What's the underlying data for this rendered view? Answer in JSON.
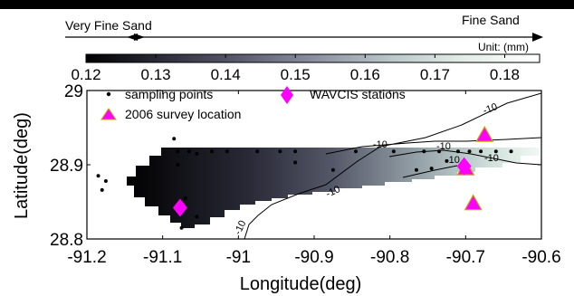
{
  "chart_data": {
    "type": "heatmap",
    "title": "",
    "xlabel": "Longitude(deg)",
    "ylabel": "Latitude(deg)",
    "xlim": [
      -91.2,
      -90.6
    ],
    "ylim": [
      28.8,
      29.0
    ],
    "xticks": [
      "-91.2",
      "-91.1",
      "-91",
      "-90.9",
      "-90.8",
      "-90.7",
      "-90.6"
    ],
    "yticks": [
      "28.8",
      "28.9",
      "29"
    ],
    "grid": false,
    "legend_position": "top-left",
    "colorbar": {
      "ticks": [
        "0.12",
        "0.13",
        "0.14",
        "0.15",
        "0.16",
        "0.17",
        "0.18"
      ],
      "range": [
        0.12,
        0.185
      ],
      "unit_label": "Unit: (mm)",
      "scale_left_label": "Very Fine Sand",
      "scale_right_label": "Fine Sand",
      "colormap": [
        "#000000",
        "#2c2c3a",
        "#5a5a6e",
        "#8a8fa0",
        "#b7c6c8",
        "#e4eee8",
        "#ffffff"
      ]
    },
    "legend": [
      {
        "label": "sampling points",
        "marker": "dot",
        "color": "#000000"
      },
      {
        "label": "WAVCIS stations",
        "marker": "diamond",
        "color": "#ff00ff"
      },
      {
        "label": "2006 survey location",
        "marker": "triangle",
        "color": "#ff00ff"
      }
    ],
    "contour_labels": [
      "-10",
      "-10",
      "-10",
      "-10",
      "-10",
      "-10",
      "-10"
    ],
    "sampling_points": [
      [
        -91.185,
        28.885
      ],
      [
        -91.175,
        28.878
      ],
      [
        -91.18,
        28.866
      ],
      [
        -91.085,
        28.935
      ],
      [
        -91.08,
        28.918
      ],
      [
        -91.065,
        28.918
      ],
      [
        -91.08,
        28.9
      ],
      [
        -91.055,
        28.915
      ],
      [
        -91.035,
        28.918
      ],
      [
        -91.015,
        28.918
      ],
      [
        -90.975,
        28.918
      ],
      [
        -90.945,
        28.918
      ],
      [
        -90.925,
        28.918
      ],
      [
        -90.925,
        28.903
      ],
      [
        -90.875,
        28.893
      ],
      [
        -90.845,
        28.918
      ],
      [
        -90.795,
        28.918
      ],
      [
        -90.755,
        28.918
      ],
      [
        -90.735,
        28.918
      ],
      [
        -90.725,
        28.905
      ],
      [
        -90.71,
        28.918
      ],
      [
        -90.695,
        28.918
      ],
      [
        -90.68,
        28.918
      ],
      [
        -90.66,
        28.918
      ],
      [
        -90.64,
        28.918
      ],
      [
        -90.765,
        28.893
      ],
      [
        -90.745,
        28.895
      ],
      [
        -91.07,
        28.855
      ],
      [
        -91.055,
        28.83
      ],
      [
        -91.075,
        28.815
      ]
    ],
    "wavcis_stations": [
      [
        -91.077,
        28.842
      ],
      [
        -90.702,
        28.898
      ]
    ],
    "survey_locations_2006": [
      [
        -90.675,
        28.94
      ],
      [
        -90.7,
        28.895
      ],
      [
        -90.69,
        28.848
      ]
    ]
  }
}
